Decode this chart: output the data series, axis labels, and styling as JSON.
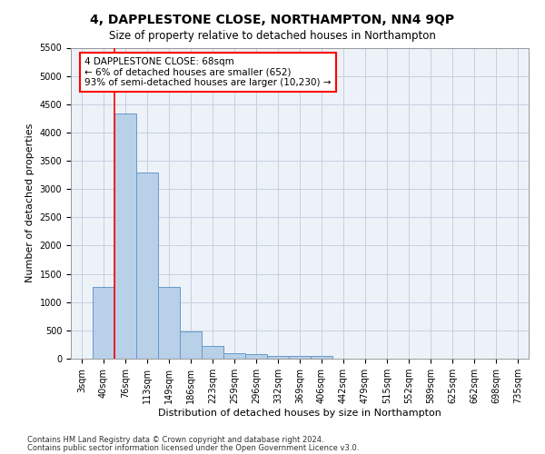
{
  "title": "4, DAPPLESTONE CLOSE, NORTHAMPTON, NN4 9QP",
  "subtitle": "Size of property relative to detached houses in Northampton",
  "xlabel": "Distribution of detached houses by size in Northampton",
  "ylabel": "Number of detached properties",
  "footnote1": "Contains HM Land Registry data © Crown copyright and database right 2024.",
  "footnote2": "Contains public sector information licensed under the Open Government Licence v3.0.",
  "categories": [
    "3sqm",
    "40sqm",
    "76sqm",
    "113sqm",
    "149sqm",
    "186sqm",
    "223sqm",
    "259sqm",
    "296sqm",
    "332sqm",
    "369sqm",
    "406sqm",
    "442sqm",
    "479sqm",
    "515sqm",
    "552sqm",
    "589sqm",
    "625sqm",
    "662sqm",
    "698sqm",
    "735sqm"
  ],
  "bar_values": [
    0,
    1270,
    4330,
    3300,
    1270,
    480,
    225,
    100,
    75,
    55,
    55,
    55,
    0,
    0,
    0,
    0,
    0,
    0,
    0,
    0,
    0
  ],
  "bar_color": "#b8d0e8",
  "bar_edge_color": "#6699cc",
  "annotation_line1": "4 DAPPLESTONE CLOSE: 68sqm",
  "annotation_line2": "← 6% of detached houses are smaller (652)",
  "annotation_line3": "93% of semi-detached houses are larger (10,230) →",
  "annotation_box_color": "white",
  "annotation_border_color": "red",
  "ylim": [
    0,
    5500
  ],
  "yticks": [
    0,
    500,
    1000,
    1500,
    2000,
    2500,
    3000,
    3500,
    4000,
    4500,
    5000,
    5500
  ],
  "bg_color": "#edf2f9",
  "grid_color": "#c5d0e0",
  "title_fontsize": 10,
  "subtitle_fontsize": 8.5,
  "axis_label_fontsize": 8,
  "tick_fontsize": 7,
  "annotation_fontsize": 7.5,
  "footnote_fontsize": 6
}
